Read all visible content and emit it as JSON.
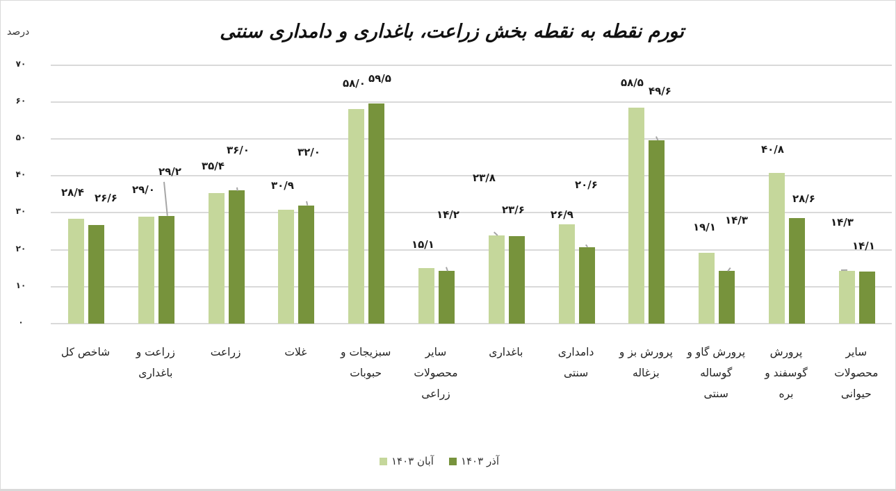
{
  "chart_data": {
    "type": "bar",
    "title": "تورم نقطه به نقطه بخش زراعت، باغداری و دامداری سنتی",
    "ylabel": "درصد",
    "xlabel": "",
    "ylim": [
      0,
      70
    ],
    "yticks": [
      "۰",
      "۱۰",
      "۲۰",
      "۳۰",
      "۴۰",
      "۵۰",
      "۶۰",
      "۷۰"
    ],
    "grid": true,
    "legend_position": "bottom",
    "categories": [
      "شاخص کل",
      "زراعت و\nباغداری",
      "زراعت",
      "غلات",
      "سبزیجات و\nحبوبات",
      "سایر\nمحصولات\nزراعی",
      "باغداری",
      "دامداری\nسنتی",
      "پرورش بز و\nبزغاله",
      "پرورش گاو و\nگوساله\nسنتی",
      "پرورش\nگوسفند و\nبره",
      "سایر\nمحصولات\nحیوانی"
    ],
    "series": [
      {
        "name": "آبان ۱۴۰۳",
        "color": "#c5d79b",
        "values": [
          28.4,
          29.0,
          35.4,
          30.9,
          58.0,
          15.1,
          23.8,
          26.9,
          58.5,
          19.1,
          40.8,
          14.3
        ],
        "labels": [
          "۲۸/۴",
          "۲۹/۰",
          "۳۵/۴",
          "۳۰/۹",
          "۵۸/۰",
          "۱۵/۱",
          "۲۳/۸",
          "۲۶/۹",
          "۵۸/۵",
          "۱۹/۱",
          "۴۰/۸",
          "۱۴/۳"
        ]
      },
      {
        "name": "آذر ۱۴۰۳",
        "color": "#77933c",
        "values": [
          26.6,
          29.2,
          36.0,
          32.0,
          59.5,
          14.2,
          23.6,
          20.6,
          49.6,
          14.3,
          28.6,
          14.1
        ],
        "labels": [
          "۲۶/۶",
          "۲۹/۲",
          "۳۶/۰",
          "۳۲/۰",
          "۵۹/۵",
          "۱۴/۲",
          "۲۳/۶",
          "۲۰/۶",
          "۴۹/۶",
          "۱۴/۳",
          "۲۸/۶",
          "۱۴/۱"
        ]
      }
    ]
  },
  "legend": {
    "items": [
      {
        "label": "آذر ۱۴۰۳",
        "color": "#77933c"
      },
      {
        "label": "آبان ۱۴۰۳",
        "color": "#c5d79b"
      }
    ]
  },
  "label_layout": [
    {
      "l": [
        88,
        268
      ],
      "d": [
        136,
        276
      ]
    },
    {
      "l": [
        190,
        264
      ],
      "d": [
        228,
        238,
        235,
        262
      ]
    },
    {
      "l": [
        290,
        230
      ],
      "d": [
        326,
        207,
        340,
        270
      ]
    },
    {
      "l": [
        390,
        258
      ],
      "d": [
        428,
        210,
        440,
        290
      ]
    },
    {
      "l": [
        493,
        111
      ],
      "d": [
        530,
        104
      ]
    },
    {
      "l": [
        592,
        343
      ],
      "d": [
        628,
        300,
        641,
        385
      ]
    },
    {
      "l": [
        680,
        247,
        710,
        335
      ],
      "d": [
        722,
        293
      ]
    },
    {
      "l": [
        792,
        300
      ],
      "d": [
        827,
        257,
        842,
        353
      ]
    },
    {
      "l": [
        893,
        110
      ],
      "d": [
        933,
        122,
        943,
        197
      ]
    },
    {
      "l": [
        997,
        318
      ],
      "d": [
        1043,
        308,
        1050,
        385
      ]
    },
    {
      "l": [
        1095,
        206
      ],
      "d": [
        1140,
        277
      ]
    },
    {
      "l": [
        1195,
        311,
        1210,
        390
      ],
      "d": [
        1226,
        345
      ]
    }
  ]
}
